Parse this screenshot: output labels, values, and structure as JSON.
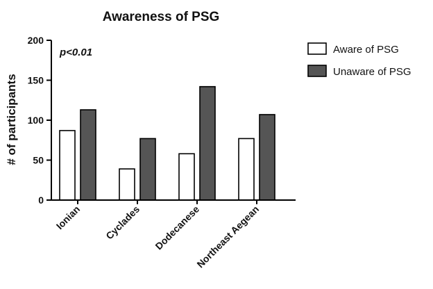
{
  "chart_data": {
    "type": "bar",
    "title": "Awareness of PSG",
    "xlabel": "",
    "ylabel": "# of participants",
    "ylim": [
      0,
      200
    ],
    "yticks": [
      0,
      50,
      100,
      150,
      200
    ],
    "categories": [
      "Ionian",
      "Cyclades",
      "Dodecanese",
      "Northeast Aegean"
    ],
    "series": [
      {
        "name": "Aware of PSG",
        "values": [
          87,
          39,
          58,
          77
        ],
        "color": "#ffffff"
      },
      {
        "name": "Unaware of PSG",
        "values": [
          113,
          77,
          142,
          107
        ],
        "color": "#555555"
      }
    ],
    "annotation": "p<0.01",
    "grid": false,
    "legend_position": "top-right"
  }
}
